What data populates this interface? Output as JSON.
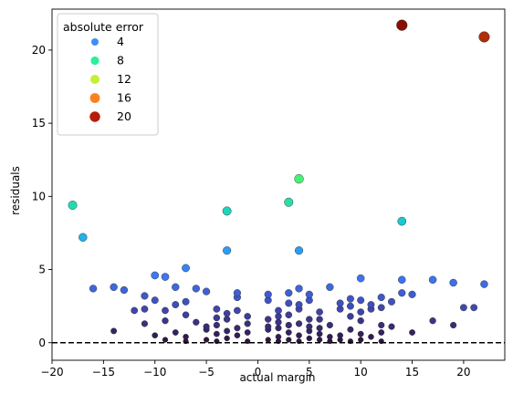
{
  "chart_data": {
    "type": "scatter",
    "xlabel": "actual margin",
    "ylabel": "residuals",
    "xlim": [
      -20,
      24
    ],
    "ylim": [
      -1.2,
      22.8
    ],
    "xticks": [
      -20,
      -15,
      -10,
      -5,
      0,
      5,
      10,
      15,
      20
    ],
    "yticks": [
      0,
      5,
      10,
      15,
      20
    ],
    "reference_line": {
      "y": 0,
      "style": "dashed",
      "color": "#000000"
    },
    "grid": false,
    "color_scale": {
      "name": "turbo",
      "min": 0,
      "max": 22
    },
    "legend": {
      "title": "absolute error",
      "placement": "top-left",
      "entries": [
        {
          "label": "4",
          "value": 4,
          "color": "#3d8ff5"
        },
        {
          "label": "8",
          "value": 8,
          "color": "#2af09a"
        },
        {
          "label": "12",
          "value": 12,
          "color": "#c5ef34"
        },
        {
          "label": "16",
          "value": 16,
          "color": "#fb8022"
        },
        {
          "label": "20",
          "value": 20,
          "color": "#b51d08"
        }
      ]
    },
    "points": [
      {
        "x": 14,
        "y": 21.7
      },
      {
        "x": 22,
        "y": 20.9
      },
      {
        "x": 4,
        "y": 11.2
      },
      {
        "x": -18,
        "y": 9.4
      },
      {
        "x": 3,
        "y": 9.6
      },
      {
        "x": -3,
        "y": 9.0
      },
      {
        "x": 14,
        "y": 8.3
      },
      {
        "x": -17,
        "y": 7.2
      },
      {
        "x": -3,
        "y": 6.3
      },
      {
        "x": 4,
        "y": 6.3
      },
      {
        "x": -7,
        "y": 5.1
      },
      {
        "x": -10,
        "y": 4.6
      },
      {
        "x": -9,
        "y": 4.5
      },
      {
        "x": 10,
        "y": 4.4
      },
      {
        "x": 14,
        "y": 4.3
      },
      {
        "x": 17,
        "y": 4.3
      },
      {
        "x": 19,
        "y": 4.1
      },
      {
        "x": 22,
        "y": 4.0
      },
      {
        "x": -16,
        "y": 3.7
      },
      {
        "x": -14,
        "y": 3.8
      },
      {
        "x": -13,
        "y": 3.6
      },
      {
        "x": -8,
        "y": 3.8
      },
      {
        "x": -6,
        "y": 3.7
      },
      {
        "x": -5,
        "y": 3.5
      },
      {
        "x": -2,
        "y": 3.4
      },
      {
        "x": 1,
        "y": 3.3
      },
      {
        "x": 3,
        "y": 3.4
      },
      {
        "x": 4,
        "y": 3.7
      },
      {
        "x": 5,
        "y": 3.3
      },
      {
        "x": 7,
        "y": 3.8
      },
      {
        "x": 9,
        "y": 3.0
      },
      {
        "x": 12,
        "y": 3.1
      },
      {
        "x": 14,
        "y": 3.4
      },
      {
        "x": 15,
        "y": 3.3
      },
      {
        "x": -11,
        "y": 3.2
      },
      {
        "x": -10,
        "y": 2.9
      },
      {
        "x": -8,
        "y": 2.6
      },
      {
        "x": -7,
        "y": 2.8
      },
      {
        "x": -2,
        "y": 3.1
      },
      {
        "x": 1,
        "y": 2.9
      },
      {
        "x": 3,
        "y": 2.7
      },
      {
        "x": 5,
        "y": 2.9
      },
      {
        "x": 8,
        "y": 2.7
      },
      {
        "x": 10,
        "y": 2.9
      },
      {
        "x": 11,
        "y": 2.6
      },
      {
        "x": 13,
        "y": 2.8
      },
      {
        "x": -12,
        "y": 2.2
      },
      {
        "x": -11,
        "y": 2.3
      },
      {
        "x": -9,
        "y": 2.2
      },
      {
        "x": -7,
        "y": 1.9
      },
      {
        "x": -4,
        "y": 2.3
      },
      {
        "x": -2,
        "y": 2.2
      },
      {
        "x": 2,
        "y": 2.2
      },
      {
        "x": 4,
        "y": 2.3
      },
      {
        "x": 6,
        "y": 2.1
      },
      {
        "x": 8,
        "y": 2.3
      },
      {
        "x": 9,
        "y": 2.5
      },
      {
        "x": 10,
        "y": 2.1
      },
      {
        "x": 11,
        "y": 2.3
      },
      {
        "x": 12,
        "y": 2.4
      },
      {
        "x": 20,
        "y": 2.4
      },
      {
        "x": 21,
        "y": 2.4
      },
      {
        "x": -11,
        "y": 1.3
      },
      {
        "x": -9,
        "y": 1.5
      },
      {
        "x": -6,
        "y": 1.4
      },
      {
        "x": -3,
        "y": 1.6
      },
      {
        "x": -1,
        "y": 1.8
      },
      {
        "x": 1,
        "y": 1.6
      },
      {
        "x": 2,
        "y": 1.4
      },
      {
        "x": 3,
        "y": 1.9
      },
      {
        "x": 6,
        "y": 1.6
      },
      {
        "x": 9,
        "y": 1.8
      },
      {
        "x": 10,
        "y": 1.5
      },
      {
        "x": 12,
        "y": 1.2
      },
      {
        "x": 13,
        "y": 1.1
      },
      {
        "x": 17,
        "y": 1.5
      },
      {
        "x": 19,
        "y": 1.2
      },
      {
        "x": -14,
        "y": 0.8
      },
      {
        "x": -10,
        "y": 0.5
      },
      {
        "x": -8,
        "y": 0.7
      },
      {
        "x": -7,
        "y": 0.4
      },
      {
        "x": -5,
        "y": 0.9
      },
      {
        "x": -4,
        "y": 0.6
      },
      {
        "x": -3,
        "y": 0.8
      },
      {
        "x": -2,
        "y": 0.5
      },
      {
        "x": -1,
        "y": 0.7
      },
      {
        "x": 1,
        "y": 0.9
      },
      {
        "x": 2,
        "y": 0.4
      },
      {
        "x": 3,
        "y": 0.7
      },
      {
        "x": 4,
        "y": 0.5
      },
      {
        "x": 5,
        "y": 0.8
      },
      {
        "x": 6,
        "y": 0.6
      },
      {
        "x": 7,
        "y": 0.4
      },
      {
        "x": 8,
        "y": 0.5
      },
      {
        "x": 9,
        "y": 0.9
      },
      {
        "x": 10,
        "y": 0.6
      },
      {
        "x": 11,
        "y": 0.4
      },
      {
        "x": 12,
        "y": 0.7
      },
      {
        "x": 15,
        "y": 0.7
      },
      {
        "x": -9,
        "y": 0.2
      },
      {
        "x": -7,
        "y": 0.1
      },
      {
        "x": -5,
        "y": 0.2
      },
      {
        "x": -4,
        "y": 0.1
      },
      {
        "x": -3,
        "y": 0.3
      },
      {
        "x": -1,
        "y": 0.1
      },
      {
        "x": 1,
        "y": 0.2
      },
      {
        "x": 2,
        "y": 0.1
      },
      {
        "x": 3,
        "y": 0.2
      },
      {
        "x": 4,
        "y": 0.1
      },
      {
        "x": 5,
        "y": 0.3
      },
      {
        "x": 6,
        "y": 0.2
      },
      {
        "x": 7,
        "y": 0.1
      },
      {
        "x": 8,
        "y": 0.2
      },
      {
        "x": 9,
        "y": 0.1
      },
      {
        "x": 10,
        "y": 0.2
      },
      {
        "x": 12,
        "y": 0.1
      },
      {
        "x": -5,
        "y": 1.1
      },
      {
        "x": -4,
        "y": 1.2
      },
      {
        "x": -2,
        "y": 1.0
      },
      {
        "x": -1,
        "y": 1.3
      },
      {
        "x": 1,
        "y": 1.1
      },
      {
        "x": 2,
        "y": 1.0
      },
      {
        "x": 3,
        "y": 1.2
      },
      {
        "x": 4,
        "y": 1.3
      },
      {
        "x": 5,
        "y": 1.1
      },
      {
        "x": 6,
        "y": 1.0
      },
      {
        "x": 7,
        "y": 1.2
      },
      {
        "x": -3,
        "y": 2.0
      },
      {
        "x": 2,
        "y": 1.8
      },
      {
        "x": -4,
        "y": 1.7
      },
      {
        "x": 5,
        "y": 1.6
      },
      {
        "x": 4,
        "y": 2.6
      }
    ]
  }
}
